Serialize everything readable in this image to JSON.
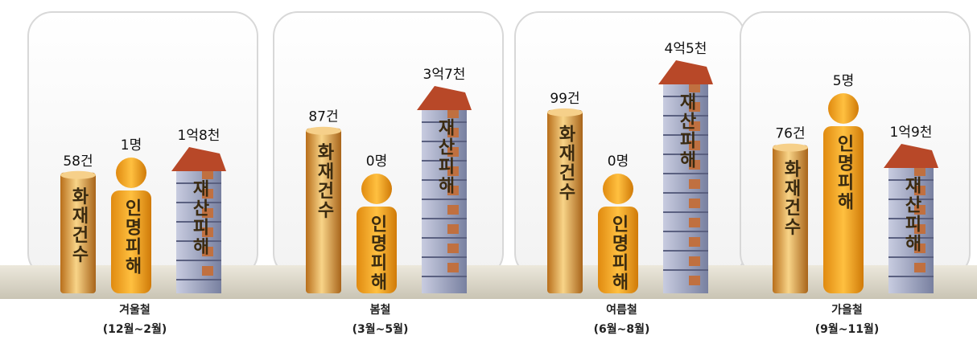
{
  "chart_data": {
    "type": "pictogram",
    "categories": [
      "겨울철",
      "봄철",
      "여름철",
      "가을철"
    ],
    "periods": [
      "(12월~2월)",
      "(3월~5월)",
      "(6월~8월)",
      "(9월~11월)"
    ],
    "series": [
      {
        "name": "화재건수",
        "color": "#e0a040",
        "values": [
          58,
          87,
          99,
          76
        ],
        "value_labels": [
          "58건",
          "87건",
          "99건",
          "76건"
        ]
      },
      {
        "name": "인명피해",
        "color": "#f0a020",
        "values": [
          1,
          0,
          0,
          5
        ],
        "value_labels": [
          "1명",
          "0명",
          "0명",
          "5명"
        ]
      },
      {
        "name": "재산피해",
        "color": "#9aa0bc",
        "values": [
          180000000,
          370000000,
          450000000,
          190000000
        ],
        "value_labels": [
          "1억8천",
          "3억7천",
          "4억5천",
          "1억9천"
        ]
      }
    ]
  }
}
